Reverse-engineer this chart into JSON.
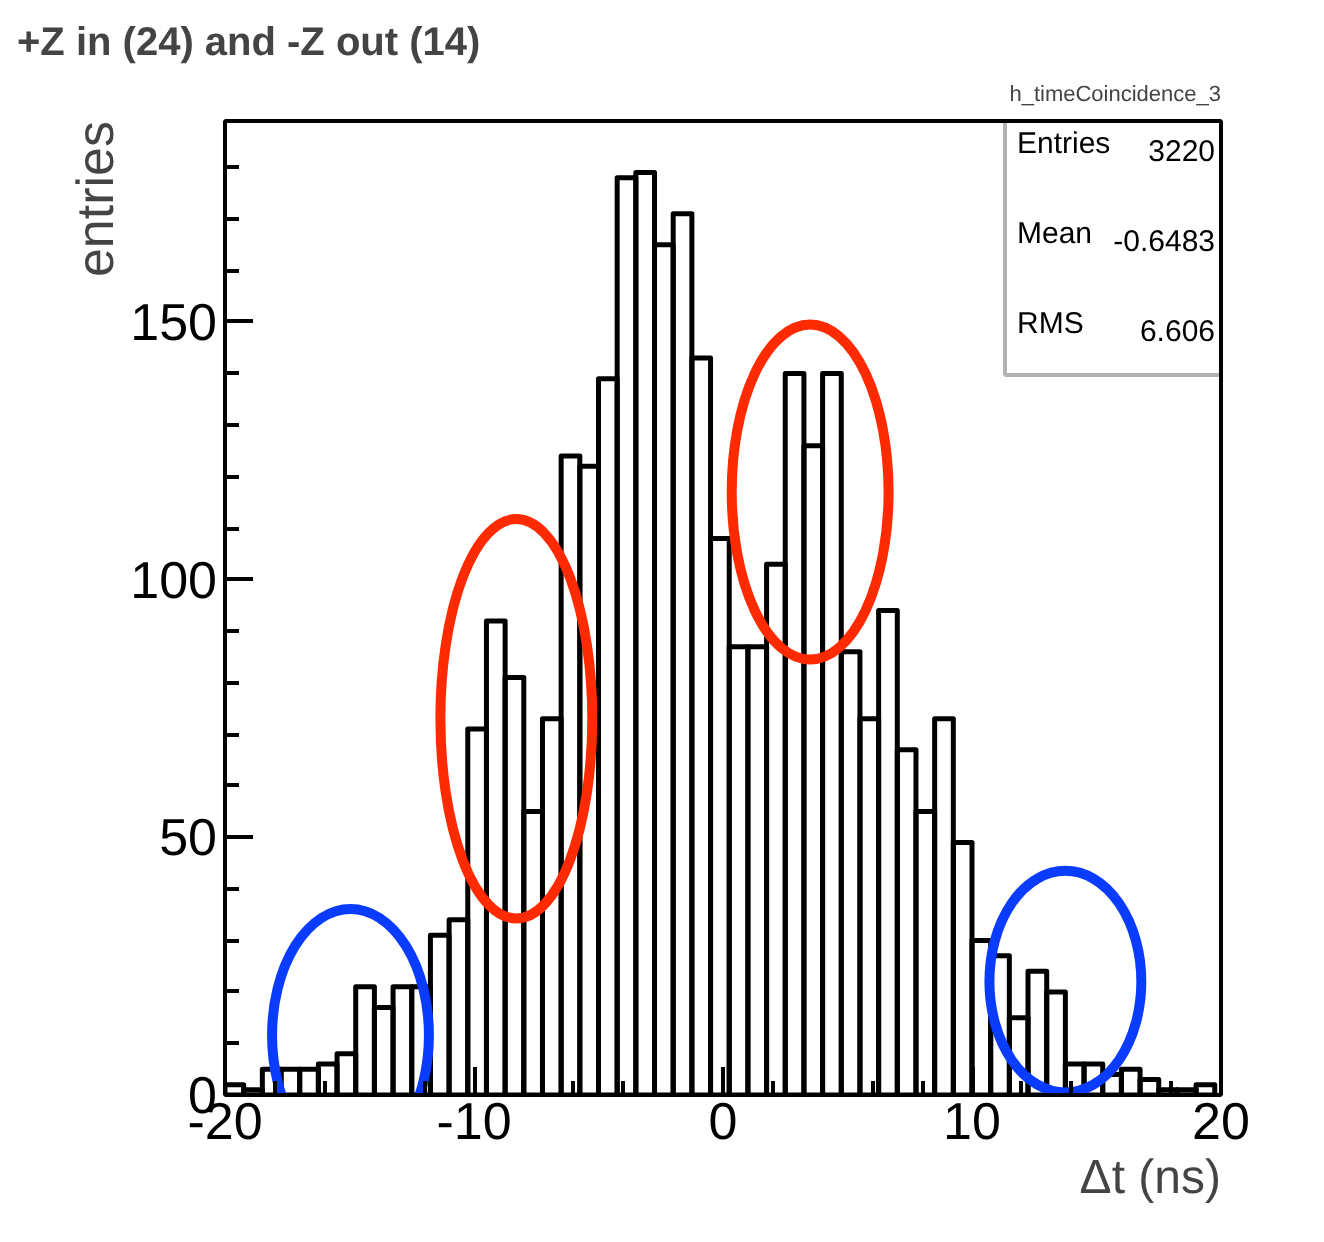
{
  "chart_data": {
    "type": "histogram",
    "title": "+Z in (24) and -Z out  (14)",
    "xlabel": "Δt (ns)",
    "ylabel": "entries",
    "bins": [
      -20,
      -19.25,
      -18.5,
      -17.75,
      -17,
      -16.25,
      -15.5,
      -14.75,
      -14,
      -13.25,
      -12.5,
      -11.75,
      -11,
      -10.25,
      -9.5,
      -8.75,
      -8,
      -7.25,
      -6.5,
      -5.75,
      -5,
      -4.25,
      -3.5,
      -2.75,
      -2,
      -1.25,
      -0.5,
      0.25,
      1,
      1.75,
      2.5,
      3.25,
      4,
      4.75,
      5.5,
      6.25,
      7,
      7.75,
      8.5,
      9.25,
      10,
      10.75,
      11.5,
      12.25,
      13,
      13.75,
      14.5,
      15.25,
      16,
      16.75,
      17.5,
      18.25,
      19,
      19.75
    ],
    "values": [
      2,
      1,
      5,
      5,
      5,
      6,
      8,
      21,
      17,
      21,
      21,
      31,
      34,
      71,
      92,
      81,
      55,
      73,
      124,
      122,
      139,
      178,
      179,
      165,
      171,
      143,
      108,
      87,
      87,
      103,
      140,
      126,
      140,
      86,
      73,
      94,
      67,
      55,
      73,
      49,
      30,
      27,
      15,
      24,
      20,
      6,
      6,
      4,
      5,
      3,
      1,
      1,
      2
    ],
    "color": "#000000",
    "xlim": [
      -20,
      20
    ],
    "ylim": [
      0,
      189
    ],
    "xticks": [
      -20,
      {
        "value": -18,
        "label": null
      },
      {
        "value": -16,
        "label": null
      },
      {
        "value": -14,
        "label": null
      },
      {
        "value": -12,
        "label": null
      },
      -10,
      {
        "value": -8,
        "label": null
      },
      {
        "value": -6,
        "label": null
      },
      {
        "value": -4,
        "label": null
      },
      {
        "value": -2,
        "label": null
      },
      0,
      {
        "value": 2,
        "label": null
      },
      {
        "value": 4,
        "label": null
      },
      {
        "value": 6,
        "label": null
      },
      {
        "value": 8,
        "label": null
      },
      10,
      {
        "value": 12,
        "label": null
      },
      {
        "value": 14,
        "label": null
      },
      {
        "value": 16,
        "label": null
      },
      {
        "value": 18,
        "label": null
      },
      20
    ],
    "yticks": [
      0,
      {
        "value": 10,
        "label": null
      },
      {
        "value": 20,
        "label": null
      },
      {
        "value": 30,
        "label": null
      },
      {
        "value": 40,
        "label": null
      },
      50,
      {
        "value": 60,
        "label": null
      },
      {
        "value": 70,
        "label": null
      },
      {
        "value": 80,
        "label": null
      },
      {
        "value": 90,
        "label": null
      },
      100,
      {
        "value": 110,
        "label": null
      },
      {
        "value": 120,
        "label": null
      },
      {
        "value": 130,
        "label": null
      },
      {
        "value": 140,
        "label": null
      },
      150,
      {
        "value": 160,
        "label": null
      },
      {
        "value": 170,
        "label": null
      },
      {
        "value": 180,
        "label": null
      }
    ],
    "grid": false,
    "annotations": [
      "h_timeCoincidence_3",
      "Entries\t3220",
      "Mean\t-0.6483",
      "RMS\t6.606"
    ]
  }
}
